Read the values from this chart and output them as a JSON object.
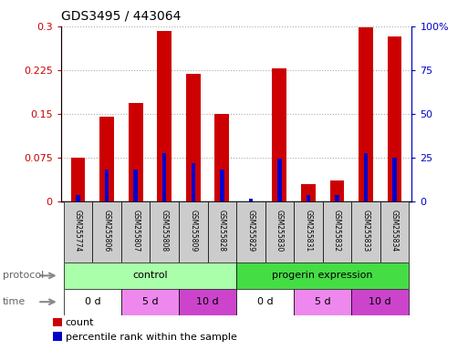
{
  "title": "GDS3495 / 443064",
  "samples": [
    "GSM255774",
    "GSM255806",
    "GSM255807",
    "GSM255808",
    "GSM255809",
    "GSM255828",
    "GSM255829",
    "GSM255830",
    "GSM255831",
    "GSM255832",
    "GSM255833",
    "GSM255834"
  ],
  "count_values": [
    0.075,
    0.145,
    0.168,
    0.292,
    0.218,
    0.15,
    0.0,
    0.228,
    0.03,
    0.035,
    0.298,
    0.283
  ],
  "percentile_values": [
    0.01,
    0.055,
    0.055,
    0.082,
    0.065,
    0.055,
    0.005,
    0.073,
    0.01,
    0.01,
    0.082,
    0.075
  ],
  "ylim": [
    0,
    0.3
  ],
  "yticks": [
    0,
    0.075,
    0.15,
    0.225,
    0.3
  ],
  "ytick_labels": [
    "0",
    "0.075",
    "0.15",
    "0.225",
    "0.3"
  ],
  "y2ticks": [
    0,
    25,
    50,
    75,
    100
  ],
  "y2tick_labels": [
    "0",
    "25",
    "50",
    "75",
    "100%"
  ],
  "y_color": "#cc0000",
  "y2_color": "#0000cc",
  "bar_width": 0.5,
  "count_color": "#cc0000",
  "percentile_color": "#0000cc",
  "grid_color": "#aaaaaa",
  "sample_bg_color": "#cccccc",
  "protocol_label": "protocol",
  "time_label": "time",
  "protocol_groups": [
    {
      "label": "control",
      "start": 0,
      "end": 5,
      "color": "#aaffaa"
    },
    {
      "label": "progerin expression",
      "start": 6,
      "end": 11,
      "color": "#44dd44"
    }
  ],
  "time_groups": [
    {
      "label": "0 d",
      "start": 0,
      "end": 1,
      "color": "#ffffff"
    },
    {
      "label": "5 d",
      "start": 2,
      "end": 3,
      "color": "#ee88ee"
    },
    {
      "label": "10 d",
      "start": 4,
      "end": 5,
      "color": "#cc44cc"
    },
    {
      "label": "0 d",
      "start": 6,
      "end": 7,
      "color": "#ffffff"
    },
    {
      "label": "5 d",
      "start": 8,
      "end": 9,
      "color": "#ee88ee"
    },
    {
      "label": "10 d",
      "start": 10,
      "end": 11,
      "color": "#cc44cc"
    }
  ],
  "legend_items": [
    {
      "label": "count",
      "color": "#cc0000"
    },
    {
      "label": "percentile rank within the sample",
      "color": "#0000cc"
    }
  ]
}
